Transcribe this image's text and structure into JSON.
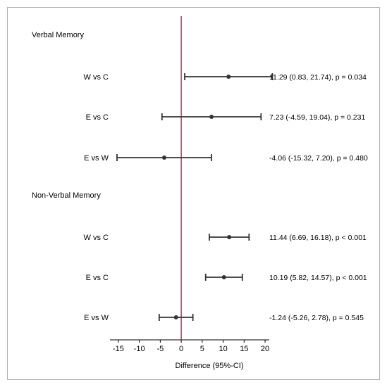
{
  "chart_data": {
    "type": "forest",
    "xlabel": "Difference (95%-CI)",
    "xlim": [
      -17,
      21
    ],
    "xticks": [
      -15,
      -10,
      -5,
      0,
      5,
      10,
      15,
      20
    ],
    "reference_line": 0,
    "reference_color": "#c8102e",
    "marker_color": "#333333",
    "groups": [
      {
        "name": "Verbal Memory",
        "rows": [
          {
            "label": "W vs C",
            "est": 11.29,
            "lo": 0.83,
            "hi": 21.74,
            "text": "11.29 (0.83, 21.74), p = 0.034"
          },
          {
            "label": "E vs C",
            "est": 7.23,
            "lo": -4.59,
            "hi": 19.04,
            "text": "7.23 (-4.59, 19.04), p = 0.231"
          },
          {
            "label": "E vs W",
            "est": -4.06,
            "lo": -15.32,
            "hi": 7.2,
            "text": "-4.06 (-15.32, 7.20), p = 0.480"
          }
        ]
      },
      {
        "name": "Non-Verbal Memory",
        "rows": [
          {
            "label": "W vs C",
            "est": 11.44,
            "lo": 6.69,
            "hi": 16.18,
            "text": "11.44 (6.69, 16.18), p < 0.001"
          },
          {
            "label": "E vs C",
            "est": 10.19,
            "lo": 5.82,
            "hi": 14.57,
            "text": "10.19 (5.82, 14.57), p < 0.001"
          },
          {
            "label": "E vs W",
            "est": -1.24,
            "lo": -5.26,
            "hi": 2.78,
            "text": "-1.24 (-5.26, 2.78), p = 0.545"
          }
        ]
      }
    ]
  }
}
